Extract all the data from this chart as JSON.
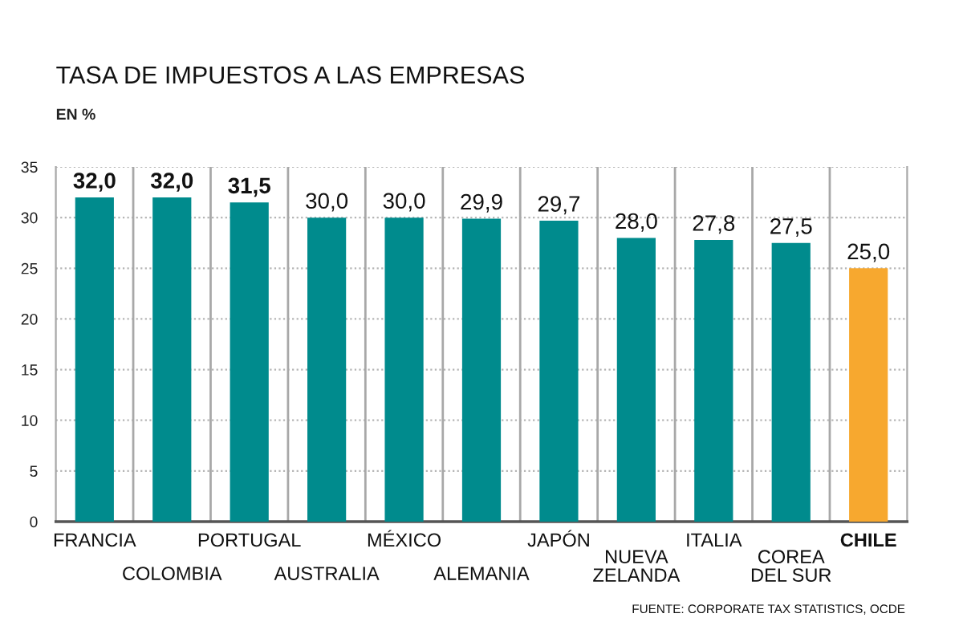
{
  "chart_data": {
    "type": "bar",
    "title": "TASA DE IMPUESTOS A LAS EMPRESAS",
    "subtitle": "EN %",
    "categories": [
      "FRANCIA",
      "COLOMBIA",
      "PORTUGAL",
      "AUSTRALIA",
      "MÉXICO",
      "ALEMANIA",
      "JAPÓN",
      "NUEVA\nZELANDA",
      "ITALIA",
      "COREA\nDEL SUR",
      "CHILE"
    ],
    "values": [
      32.0,
      32.0,
      31.5,
      30.0,
      30.0,
      29.9,
      29.7,
      28.0,
      27.8,
      27.5,
      25.0
    ],
    "colors": [
      "#008b8d",
      "#008b8d",
      "#008b8d",
      "#008b8d",
      "#008b8d",
      "#008b8d",
      "#008b8d",
      "#008b8d",
      "#008b8d",
      "#008b8d",
      "#f7a82f"
    ],
    "value_labels": [
      "32,0",
      "32,0",
      "31,5",
      "30,0",
      "30,0",
      "29,9",
      "29,7",
      "28,0",
      "27,8",
      "27,5",
      "25,0"
    ],
    "ylim": [
      0,
      35
    ],
    "yticks": [
      0,
      5,
      10,
      15,
      20,
      25,
      30,
      35
    ],
    "grid": true,
    "legend": false,
    "annotations": [
      "FUENTE: CORPORATE TAX STATISTICS, OCDE"
    ]
  }
}
